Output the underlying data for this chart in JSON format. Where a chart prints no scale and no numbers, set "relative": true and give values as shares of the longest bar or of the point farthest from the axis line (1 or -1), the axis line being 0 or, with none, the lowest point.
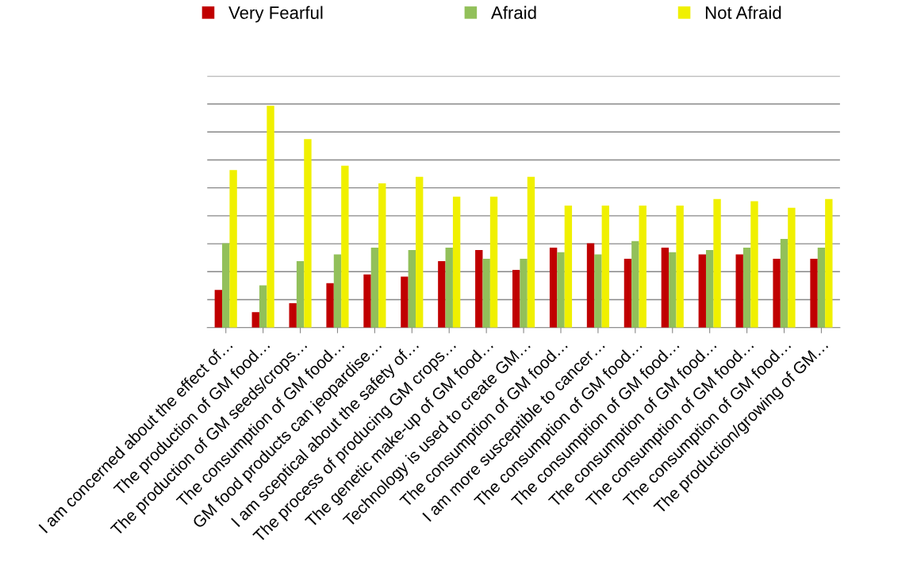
{
  "chart_data": {
    "type": "bar",
    "relative": true,
    "grid": "y",
    "legend": "top",
    "categories": [
      "I am concerned about the effect of…",
      "The production of GM food…",
      "The production of GM seeds/crops…",
      "The consumption of GM food…",
      "GM food products can jeopardise…",
      "I am sceptical about the safety of…",
      "The process of producing GM crops…",
      "The genetic make-up of GM food…",
      "Technology is used to create GM…",
      "The consumption of GM food…",
      "I am more susceptible to cancer…",
      "The consumption of GM food…",
      "The consumption of GM food…",
      "The consumption of GM food…",
      "The consumption of GM food…",
      "The consumption of GM food…",
      "The production/growing of GM…"
    ],
    "series": [
      {
        "name": "Very Fearful",
        "color": "#c00000",
        "values": [
          0.17,
          0.07,
          0.11,
          0.2,
          0.24,
          0.23,
          0.3,
          0.35,
          0.26,
          0.36,
          0.38,
          0.31,
          0.36,
          0.33,
          0.33,
          0.31,
          0.31
        ]
      },
      {
        "name": "Afraid",
        "color": "#92c05a",
        "values": [
          0.38,
          0.19,
          0.3,
          0.33,
          0.36,
          0.35,
          0.36,
          0.31,
          0.31,
          0.34,
          0.33,
          0.39,
          0.34,
          0.35,
          0.36,
          0.4,
          0.36
        ]
      },
      {
        "name": "Not Afraid",
        "color": "#f0f000",
        "values": [
          0.71,
          1,
          0.85,
          0.73,
          0.65,
          0.68,
          0.59,
          0.59,
          0.68,
          0.55,
          0.55,
          0.55,
          0.55,
          0.58,
          0.57,
          0.54,
          0.58
        ]
      }
    ]
  }
}
